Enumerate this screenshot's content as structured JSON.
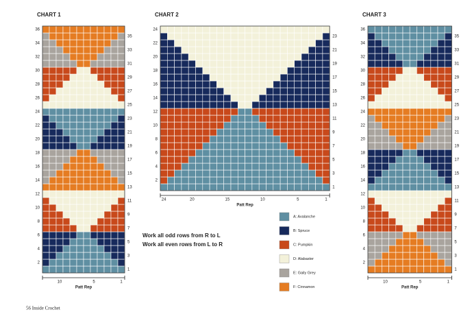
{
  "charts": [
    {
      "title": "CHART 1",
      "left_rows": [
        2,
        4,
        6,
        8,
        10,
        12,
        14,
        16,
        18,
        20,
        22,
        24,
        26,
        28,
        30,
        32,
        34,
        36
      ],
      "right_rows": [
        1,
        3,
        5,
        7,
        9,
        11,
        13,
        15,
        17,
        19,
        21,
        23,
        25,
        27,
        29,
        31,
        33,
        35
      ],
      "columns": [
        10,
        5,
        1
      ],
      "repeat_label": "Patt Rep"
    },
    {
      "title": "CHART 2",
      "left_rows": [
        2,
        4,
        6,
        8,
        10,
        12,
        14,
        16,
        18,
        20,
        22,
        24
      ],
      "right_rows": [
        1,
        3,
        5,
        7,
        9,
        11,
        13,
        15,
        17,
        19,
        21,
        23
      ],
      "columns": [
        24,
        20,
        15,
        10,
        5,
        1
      ],
      "repeat_label": "Patt Rep"
    },
    {
      "title": "CHART 3",
      "left_rows": [
        2,
        4,
        6,
        8,
        10,
        12,
        14,
        16,
        18,
        20,
        22,
        24,
        26,
        28,
        30,
        32,
        34,
        36
      ],
      "right_rows": [
        1,
        3,
        5,
        7,
        9,
        11,
        13,
        15,
        17,
        19,
        21,
        23,
        25,
        27,
        29,
        31,
        33,
        35
      ],
      "columns": [
        10,
        5,
        1
      ],
      "repeat_label": "Patt Rep"
    }
  ],
  "instructions": [
    "Work all odd rows from R to L",
    "Work all even rows from L to R"
  ],
  "legend": [
    "A: Avalanche",
    "B: Spruce",
    "C: Pumpkin",
    "D: Alabaster",
    "E: Gaily Grey",
    "F: Cinnamon"
  ],
  "footer": "56 Inside Crochet"
}
